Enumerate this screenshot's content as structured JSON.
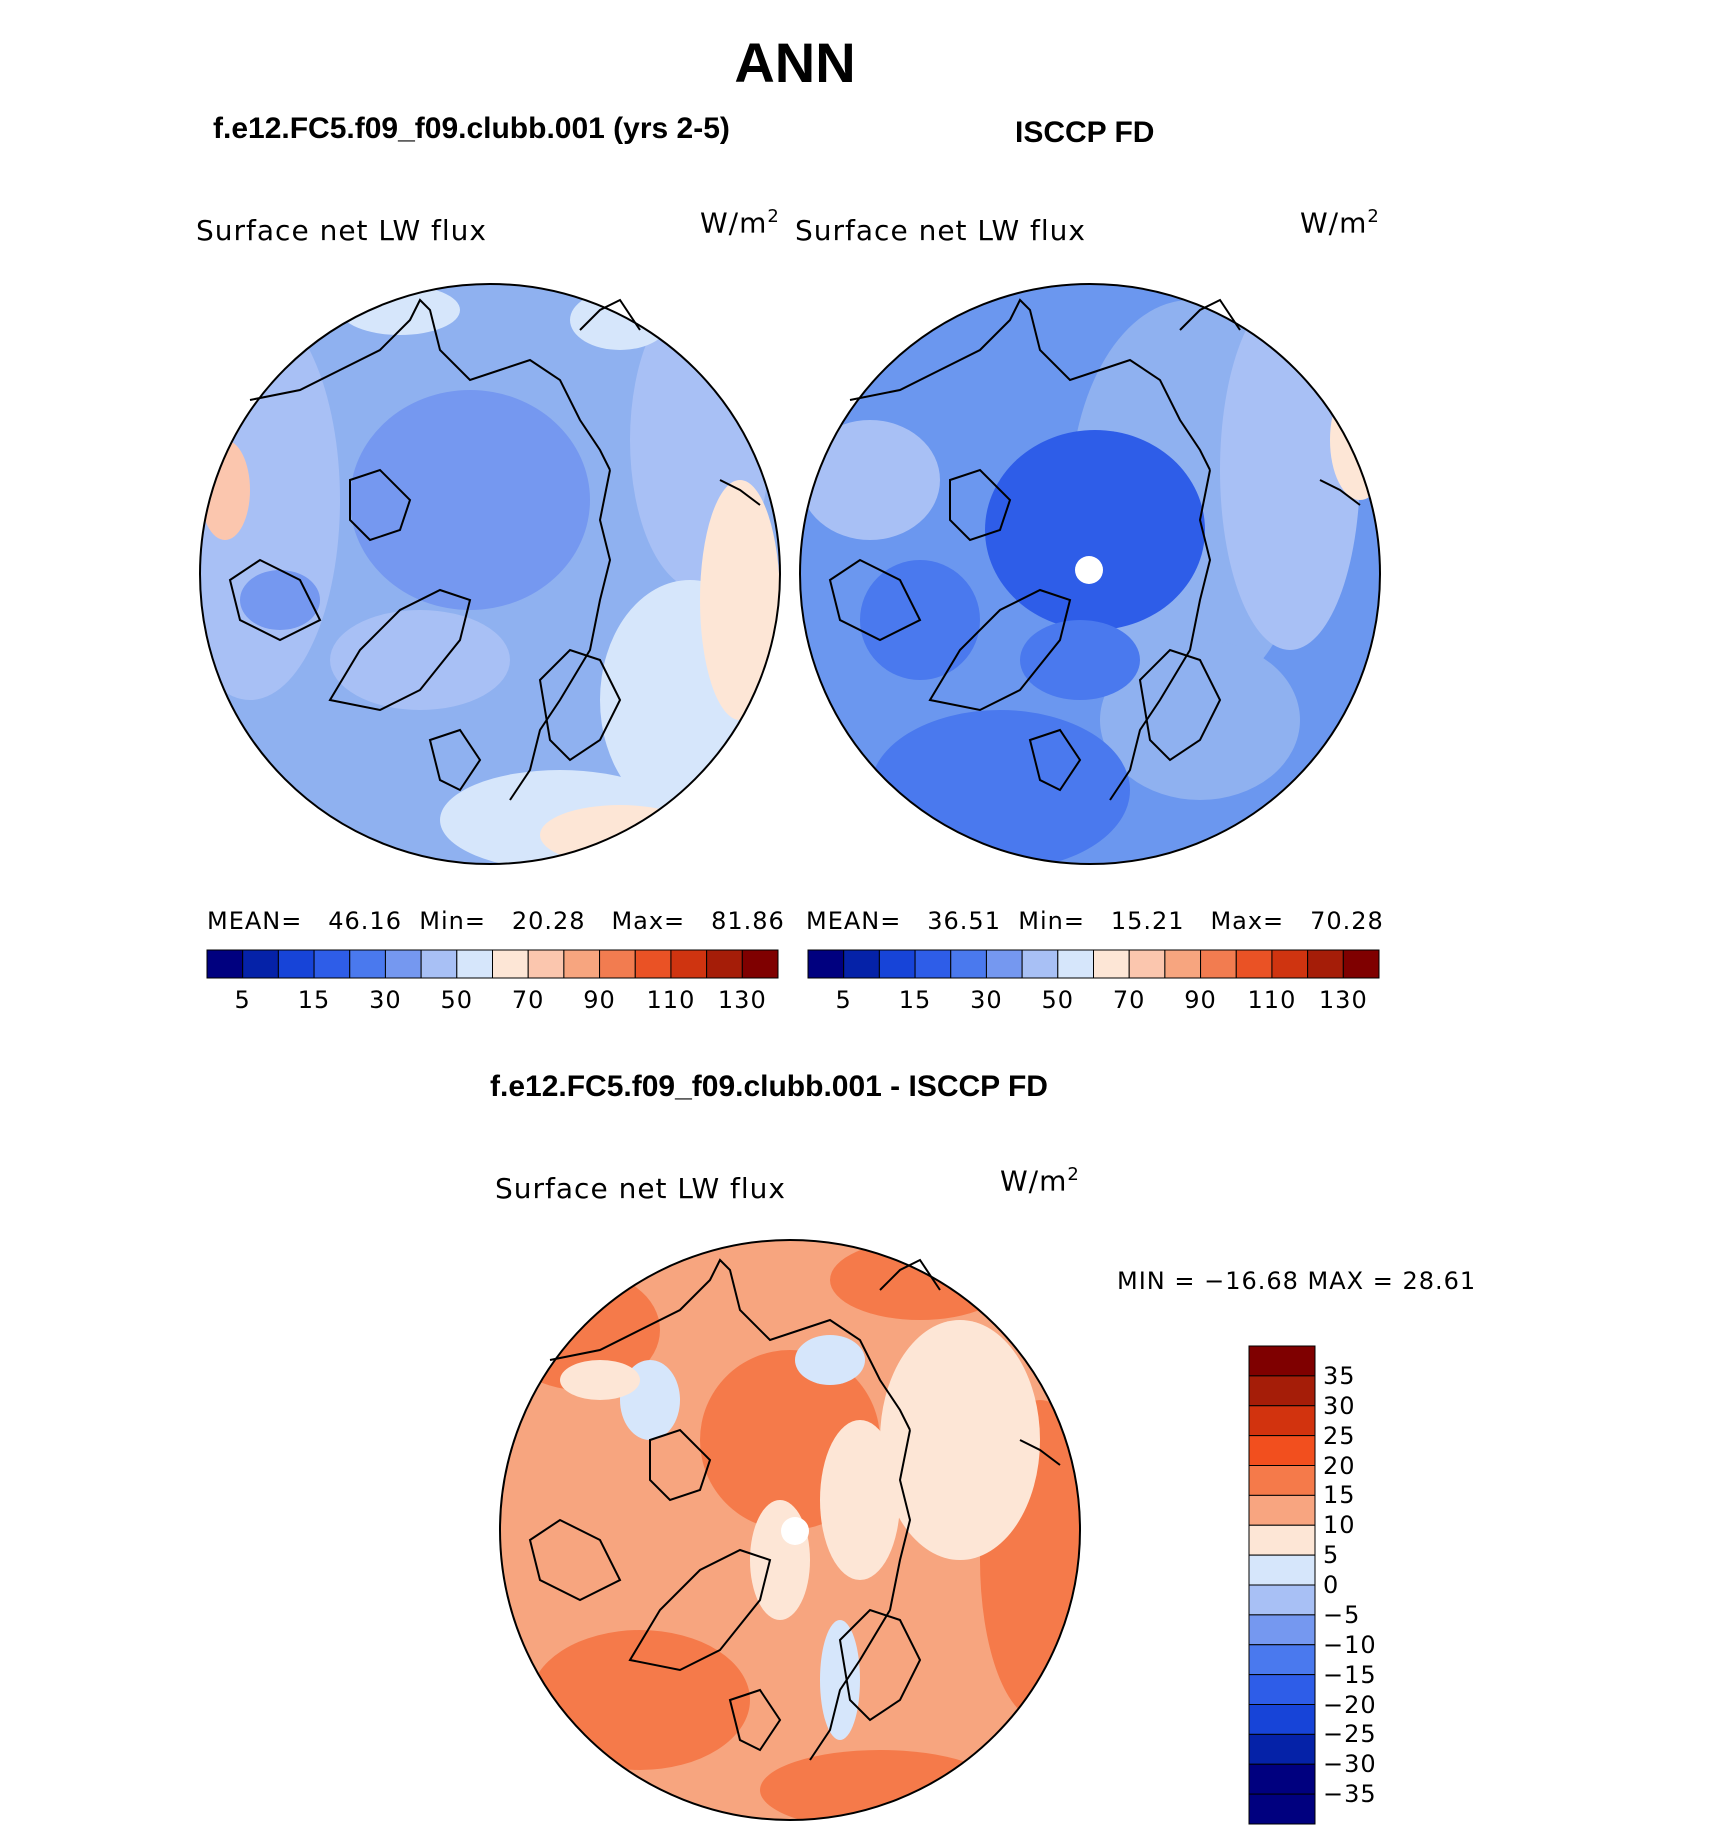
{
  "title": "ANN",
  "panels": [
    {
      "name": "model",
      "header": "f.e12.FC5.f09_f09.clubb.001 (yrs 2-5)",
      "variable": "Surface net LW flux",
      "unit_base": "W/m",
      "unit_exp": "2",
      "stats": {
        "mean_label": "MEAN=",
        "mean": "46.16",
        "min_label": "Min=",
        "min": "20.28",
        "max_label": "Max=",
        "max": "81.86"
      },
      "base_color": "#8fb1f0",
      "colorbar_labels": [
        "5",
        "15",
        "30",
        "50",
        "70",
        "90",
        "110",
        "130"
      ]
    },
    {
      "name": "obs",
      "header": "ISCCP FD",
      "variable": "Surface net LW flux",
      "unit_base": "W/m",
      "unit_exp": "2",
      "stats": {
        "mean_label": "MEAN=",
        "mean": "36.51",
        "min_label": "Min=",
        "min": "15.21",
        "max_label": "Max=",
        "max": "70.28"
      },
      "base_color": "#6b97ef",
      "colorbar_labels": [
        "5",
        "15",
        "30",
        "50",
        "70",
        "90",
        "110",
        "130"
      ]
    }
  ],
  "diff": {
    "header": "f.e12.FC5.f09_f09.clubb.001 - ISCCP FD",
    "variable": "Surface net LW flux",
    "unit_base": "W/m",
    "unit_exp": "2",
    "stats_text": "MIN = −16.68  MAX =   28.61",
    "base_color": "#f7a57f",
    "colorbar_labels": [
      "35",
      "30",
      "25",
      "20",
      "15",
      "10",
      "5",
      "0",
      "−5",
      "−10",
      "−15",
      "−20",
      "−25",
      "−30",
      "−35"
    ]
  },
  "colors": {
    "abs_scale": [
      "#00007f",
      "#0522a8",
      "#1744d8",
      "#2e5de8",
      "#4a79ee",
      "#7598f0",
      "#a8c0f5",
      "#d6e6fb",
      "#fde6d6",
      "#fbc6ae",
      "#f7a57f",
      "#f27c50",
      "#ea5225",
      "#cf3410",
      "#a51d08",
      "#7f0000"
    ],
    "diff_scale": [
      "#7f0000",
      "#a51d08",
      "#d2330e",
      "#f24f1e",
      "#f57a4a",
      "#f8a580",
      "#fde6d6",
      "#d6e6fb",
      "#a8c0f5",
      "#7598f0",
      "#4a79ee",
      "#2e5de8",
      "#1744d8",
      "#0522a8",
      "#00007f"
    ]
  },
  "chart_data": [
    {
      "type": "heatmap",
      "title": "f.e12.FC5.f09_f09.clubb.001 (yrs 2-5)",
      "subtitle": "Surface net LW flux",
      "units": "W/m2",
      "projection": "north polar stereographic",
      "mean": 46.16,
      "min": 20.28,
      "max": 81.86,
      "contour_levels": [
        5,
        10,
        15,
        20,
        30,
        40,
        50,
        60,
        70,
        80,
        90,
        100,
        110,
        120,
        130
      ]
    },
    {
      "type": "heatmap",
      "title": "ISCCP FD",
      "subtitle": "Surface net LW flux",
      "units": "W/m2",
      "projection": "north polar stereographic",
      "mean": 36.51,
      "min": 15.21,
      "max": 70.28,
      "contour_levels": [
        5,
        10,
        15,
        20,
        30,
        40,
        50,
        60,
        70,
        80,
        90,
        100,
        110,
        120,
        130
      ]
    },
    {
      "type": "heatmap",
      "title": "f.e12.FC5.f09_f09.clubb.001 - ISCCP FD",
      "subtitle": "Surface net LW flux",
      "units": "W/m2",
      "projection": "north polar stereographic",
      "min": -16.68,
      "max": 28.61,
      "contour_levels": [
        -35,
        -30,
        -25,
        -20,
        -15,
        -10,
        -5,
        0,
        5,
        10,
        15,
        20,
        25,
        30,
        35
      ]
    }
  ]
}
